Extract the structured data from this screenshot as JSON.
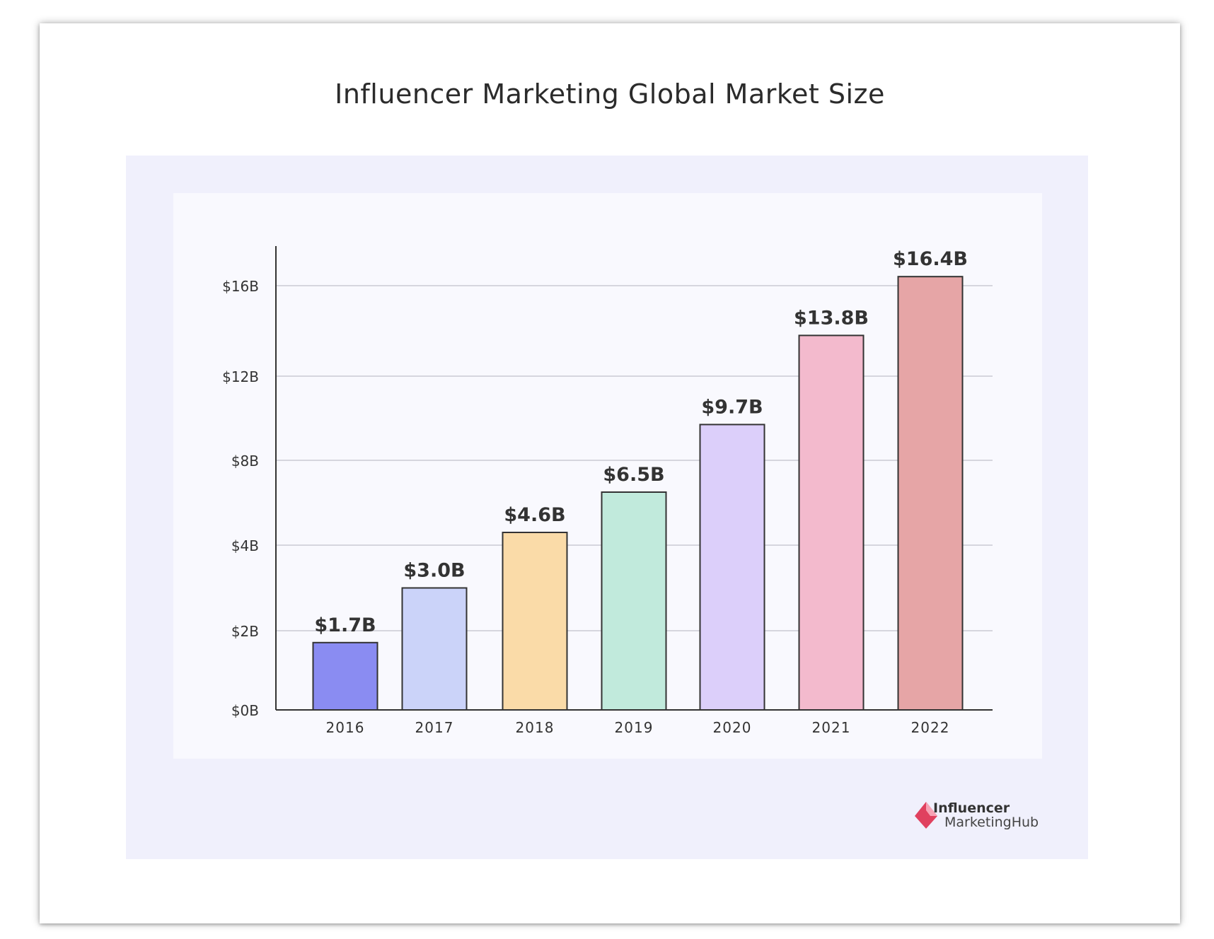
{
  "chart_data": {
    "type": "bar",
    "title": "Influencer Marketing Global Market Size",
    "categories": [
      "2016",
      "2017",
      "2018",
      "2019",
      "2020",
      "2021",
      "2022"
    ],
    "values": [
      1.7,
      3.0,
      4.6,
      6.5,
      9.7,
      13.8,
      16.4
    ],
    "value_labels": [
      "$1.7B",
      "$3.0B",
      "$4.6B",
      "$6.5B",
      "$9.7B",
      "$13.8B",
      "$16.4B"
    ],
    "bar_colors": [
      "#8a8cf2",
      "#cbd3f9",
      "#fadba8",
      "#c1eadc",
      "#dccffa",
      "#f3bacd",
      "#e6a5a6"
    ],
    "yticks": [
      0,
      2,
      4,
      8,
      12,
      16
    ],
    "ytick_labels": [
      "$0B",
      "$2B",
      "$4B",
      "$8B",
      "$12B",
      "$16B"
    ],
    "ylim": [
      0,
      16
    ],
    "xlabel": "",
    "ylabel": "",
    "grid": true,
    "legend": "none"
  },
  "brand": {
    "line1": "Influencer",
    "line2": "MarketingHub",
    "accent_color": "#e0415f"
  }
}
